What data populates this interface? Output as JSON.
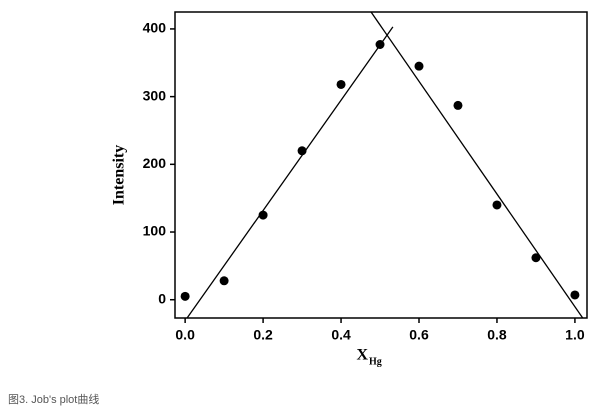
{
  "chart_data": {
    "type": "scatter",
    "ylabel": "Intensity",
    "xlabel": {
      "text": "X",
      "subscript": "Hg"
    },
    "caption": "图3. Job's plot曲线",
    "series": [
      {
        "color": "#000000",
        "x": [
          0,
          0.1,
          0.2,
          0.3,
          0.4,
          0.5,
          0.6,
          0.7,
          0.8,
          0.9,
          1.0
        ],
        "values": [
          5,
          28,
          125,
          220,
          318,
          377,
          345,
          287,
          140,
          62,
          7
        ]
      }
    ],
    "lines": [
      {
        "color": "#000000",
        "x": [
          0.005,
          0.533
        ],
        "values": [
          -27,
          403
        ]
      },
      {
        "color": "#000000",
        "x": [
          0.477,
          1.02
        ],
        "values": [
          425,
          -27
        ]
      }
    ],
    "xlim": [
      -0.026,
      1.031
    ],
    "ylim": [
      -27,
      425
    ],
    "xticks": [
      {
        "value": 0,
        "label": "0.0"
      },
      {
        "value": 0.2,
        "label": "0.2"
      },
      {
        "value": 0.4,
        "label": "0.4"
      },
      {
        "value": 0.6,
        "label": "0.6"
      },
      {
        "value": 0.8,
        "label": "0.8"
      },
      {
        "value": 1.0,
        "label": "1.0"
      }
    ],
    "yticks": [
      0,
      100,
      200,
      300,
      400
    ]
  }
}
